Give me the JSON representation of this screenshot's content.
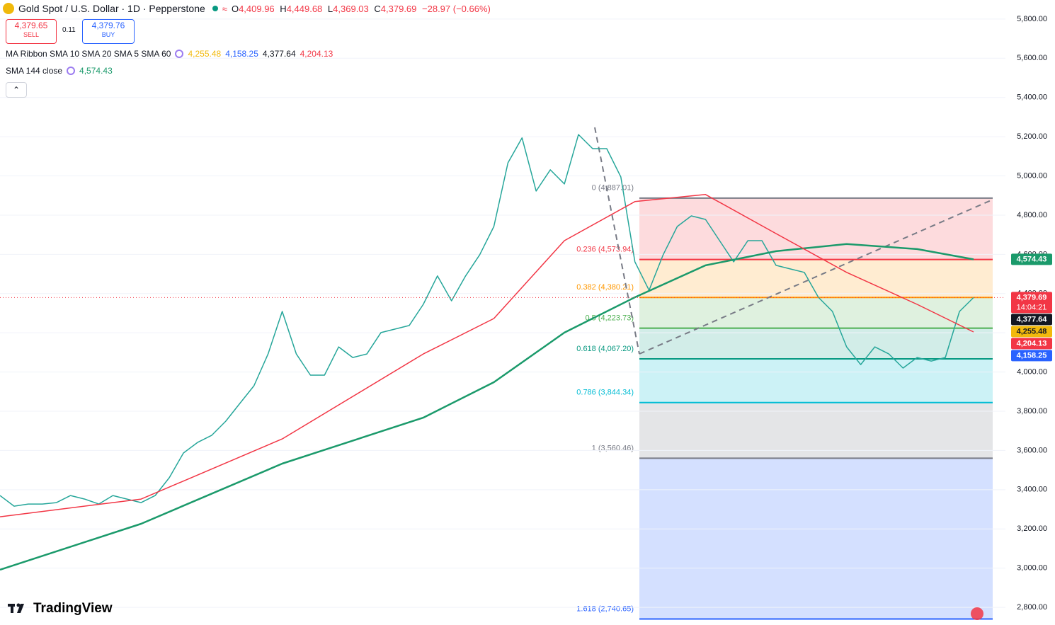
{
  "header": {
    "symbol": "Gold Spot / U.S. Dollar · 1D · Pepperstone",
    "ohlc": [
      {
        "key": "O",
        "value": "4,409.96"
      },
      {
        "key": "H",
        "value": "4,449.68"
      },
      {
        "key": "L",
        "value": "4,369.03"
      },
      {
        "key": "C",
        "value": "4,379.69"
      }
    ],
    "change": "−28.97 (−0.66%)"
  },
  "trade": {
    "sell_price": "4,379.65",
    "sell_label": "SELL",
    "spread": "0.11",
    "buy_price": "4,379.76",
    "buy_label": "BUY"
  },
  "indicators": [
    {
      "name": "MA Ribbon SMA 10 SMA 20 SMA 5 SMA 60",
      "values": [
        {
          "text": "4,255.48",
          "color": "#f2b90c"
        },
        {
          "text": "4,158.25",
          "color": "#2962ff"
        },
        {
          "text": "4,377.64",
          "color": "#131722"
        },
        {
          "text": "4,204.13",
          "color": "#f23645"
        }
      ]
    },
    {
      "name": "SMA 144 close",
      "values": [
        {
          "text": "4,574.43",
          "color": "#1b9a6b"
        }
      ]
    }
  ],
  "brand": "TradingView",
  "chart_data": {
    "type": "line",
    "ylim": [
      2710,
      5897
    ],
    "yticks": [
      {
        "value": 2800,
        "label": "2,800.00"
      },
      {
        "value": 3000,
        "label": "3,000.00"
      },
      {
        "value": 3200,
        "label": "3,200.00"
      },
      {
        "value": 3400,
        "label": "3,400.00"
      },
      {
        "value": 3600,
        "label": "3,600.00"
      },
      {
        "value": 3800,
        "label": "3,800.00"
      },
      {
        "value": 4000,
        "label": "4,000.00"
      },
      {
        "value": 4200,
        "label": "4,200.00"
      },
      {
        "value": 4400,
        "label": "4,400.00"
      },
      {
        "value": 4600,
        "label": "4,600.00"
      },
      {
        "value": 4800,
        "label": "4,800.00"
      },
      {
        "value": 5000,
        "label": "5,000.00"
      },
      {
        "value": 5200,
        "label": "5,200.00"
      },
      {
        "value": 5400,
        "label": "5,400.00"
      },
      {
        "value": 5600,
        "label": "5,600.00"
      },
      {
        "value": 5800,
        "label": "5,800.00"
      }
    ],
    "grid": true,
    "series": [
      {
        "color": "#26a69a",
        "values": [
          3370,
          3316,
          3327,
          3327,
          3334,
          3370,
          3352,
          3327,
          3370,
          3352,
          3334,
          3370,
          3461,
          3587,
          3641,
          3677,
          3749,
          3840,
          3930,
          4092,
          4309,
          4092,
          3984,
          3984,
          4128,
          4074,
          4092,
          4201,
          4219,
          4237,
          4345,
          4490,
          4363,
          4490,
          4598,
          4742,
          5067,
          5194,
          4923,
          5031,
          4959,
          5211,
          5139,
          5139,
          4995,
          4562,
          4417,
          4598,
          4742,
          4796,
          4778,
          4670,
          4562,
          4670,
          4670,
          4544,
          4526,
          4508,
          4381,
          4309,
          4128,
          4038,
          4128,
          4092,
          4020,
          4074,
          4056,
          4074,
          4309,
          4379.69
        ]
      },
      {
        "color": "#1b9a6b",
        "x": [
          0,
          10,
          20,
          30,
          35,
          40,
          45,
          50,
          55,
          60,
          65,
          69
        ],
        "values": [
          2992,
          3226,
          3533,
          3767,
          3948,
          4201,
          4381,
          4544,
          4616,
          4653,
          4627,
          4574.43
        ]
      },
      {
        "color": "#f23645",
        "x": [
          0,
          10,
          20,
          30,
          35,
          40,
          45,
          50,
          55,
          60,
          65,
          69
        ],
        "values": [
          3262,
          3352,
          3659,
          4092,
          4273,
          4670,
          4869,
          4905,
          4706,
          4508,
          4345,
          4204.13
        ]
      }
    ],
    "fib_levels": [
      {
        "value": 4887.01,
        "label": "0 (4,887.01)",
        "color": "#787b86",
        "fill": "rgba(242,54,69,0.18)"
      },
      {
        "value": 4573.94,
        "label": "0.236 (4,573.94)",
        "color": "#f23645",
        "fill": "rgba(255,152,0,0.18)"
      },
      {
        "value": 4380.21,
        "label": "0.382 (4,380.21)",
        "color": "#ff9800",
        "fill": "rgba(76,175,80,0.18)"
      },
      {
        "value": 4223.73,
        "label": "0.5 (4,223.73)",
        "color": "#4caf50",
        "fill": "rgba(8,153,129,0.18)"
      },
      {
        "value": 4067.2,
        "label": "0.618 (4,067.20)",
        "color": "#089981",
        "fill": "rgba(0,188,212,0.2)"
      },
      {
        "value": 3844.34,
        "label": "0.786 (3,844.34)",
        "color": "#00bcd4",
        "fill": "rgba(120,123,134,0.2)"
      },
      {
        "value": 3560.46,
        "label": "1 (3,560.46)",
        "color": "#787b86",
        "fill": "rgba(41,98,255,0.2)"
      },
      {
        "value": 2740.65,
        "label": "1.618 (2,740.65)",
        "color": "#2962ff"
      }
    ],
    "price_labels": [
      {
        "value": 4574.43,
        "label": "4,574.43",
        "color": "#1b9a6b"
      },
      {
        "value": 4379.69,
        "label": "4,379.69",
        "sub": "14:04:21",
        "color": "#f23645"
      },
      {
        "value": 4377.64,
        "label": "4,377.64",
        "color": "#131722"
      },
      {
        "value": 4255.48,
        "label": "4,255.48",
        "color": "#f2b90c"
      },
      {
        "value": 4204.13,
        "label": "4,204.13",
        "color": "#f23645"
      },
      {
        "value": 4158.25,
        "label": "4,158.25",
        "color": "#2962ff"
      }
    ]
  }
}
